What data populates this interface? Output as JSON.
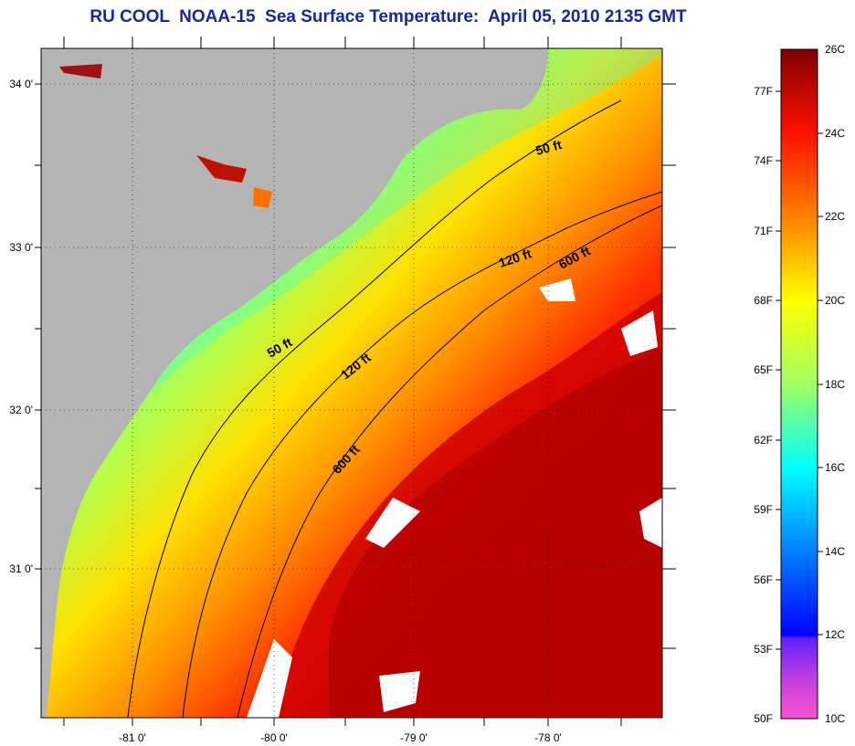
{
  "title": "RU COOL  NOAA-15  Sea Surface Temperature:  April 05, 2010 2135 GMT",
  "map": {
    "lat_ticks": [
      "34 0'",
      "33 0'",
      "32 0'",
      "31 0'"
    ],
    "lon_ticks": [
      "-81 0'",
      "-80 0'",
      "-79 0'",
      "-78 0'"
    ],
    "isobaths": [
      {
        "label": "50 ft"
      },
      {
        "label": "50 ft"
      },
      {
        "label": "120 ft"
      },
      {
        "label": "120 ft"
      },
      {
        "label": "600 ft"
      },
      {
        "label": "600 ft"
      }
    ],
    "colors": {
      "land": "#b4b4b4",
      "background": "#ffffff"
    }
  },
  "colorbar": {
    "celsius": [
      "26C",
      "24C",
      "22C",
      "20C",
      "18C",
      "16C",
      "14C",
      "12C",
      "10C"
    ],
    "fahrenheit": [
      "77F",
      "74F",
      "71F",
      "68F",
      "65F",
      "62F",
      "59F",
      "56F",
      "53F",
      "50F"
    ],
    "range_c": [
      10,
      26
    ],
    "stops": [
      "#ff50d0",
      "#a040e0",
      "#2000ff",
      "#0040ff",
      "#00a0ff",
      "#00ffff",
      "#40ffa0",
      "#a0ff40",
      "#ffff00",
      "#ffc000",
      "#ff8000",
      "#ff2000",
      "#e00000",
      "#800000"
    ]
  }
}
